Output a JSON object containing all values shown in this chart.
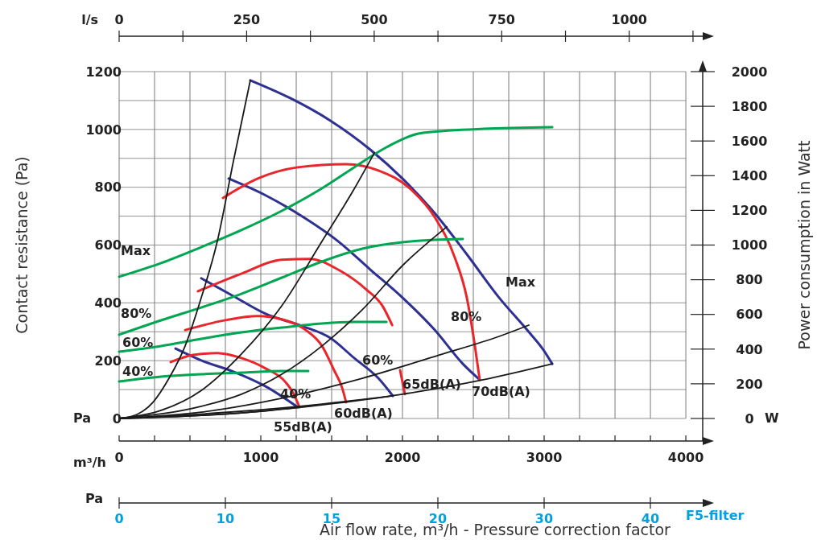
{
  "chart_data": {
    "type": "line",
    "xlabel": "Air flow rate, m³/h - Pressure correction factor",
    "ylabel": "Contact resistance (Pa)",
    "y2label": "Power consumption in Watt",
    "x2label": "l/s",
    "xlim": [
      0,
      4119
    ],
    "xticks": [
      0,
      {
        "value": 250,
        "label": null
      },
      {
        "value": 500,
        "label": null
      },
      {
        "value": 750,
        "label": null
      },
      1000,
      {
        "value": 1250,
        "label": null
      },
      {
        "value": 1500,
        "label": null
      },
      {
        "value": 1750,
        "label": null
      },
      2000,
      {
        "value": 2250,
        "label": null
      },
      {
        "value": 2500,
        "label": null
      },
      {
        "value": 2750,
        "label": null
      },
      3000,
      {
        "value": 3250,
        "label": null
      },
      {
        "value": 3500,
        "label": null
      },
      {
        "value": 3750,
        "label": null
      },
      4000
    ],
    "x2lim": [
      0,
      1144
    ],
    "x2ticks": [
      0,
      250,
      500,
      750,
      1000
    ],
    "ylim": [
      -78,
      1200
    ],
    "yticks": [
      0,
      {
        "value": 100,
        "label": null
      },
      200,
      {
        "value": 300,
        "label": null
      },
      400,
      {
        "value": 500,
        "label": null
      },
      600,
      {
        "value": 700,
        "label": null
      },
      800,
      {
        "value": 900,
        "label": null
      },
      1000,
      {
        "value": 1100,
        "label": null
      },
      1200
    ],
    "y2lim": [
      -130,
      2000
    ],
    "y2ticks": [
      0,
      200,
      400,
      600,
      800,
      1000,
      1200,
      1400,
      1600,
      1800,
      2000
    ],
    "grid": true,
    "line_style": "solid",
    "series": [
      {
        "color": "#2e3192",
        "x": [
          926,
          1205,
          1489,
          1773,
          2000,
          2228,
          2454,
          2682,
          2880,
          2995,
          3057
        ],
        "values": [
          1170,
          1109,
          1031,
          930,
          830,
          710,
          568,
          418,
          306,
          237,
          189
        ]
      },
      {
        "color": "#2e3192",
        "x": [
          773,
          1034,
          1318,
          1546,
          1773,
          2000,
          2228,
          2426,
          2545
        ],
        "values": [
          830,
          772,
          691,
          613,
          515,
          418,
          306,
          189,
          134
        ]
      },
      {
        "color": "#2e3192",
        "x": [
          580,
          807,
          1034,
          1290,
          1489,
          1659,
          1830,
          1932
        ],
        "values": [
          485,
          423,
          362,
          320,
          279,
          209,
          139,
          78
        ]
      },
      {
        "color": "#2e3192",
        "x": [
          398,
          580,
          807,
          1034,
          1261
        ],
        "values": [
          242,
          201,
          162,
          111,
          39
        ]
      },
      {
        "color": "#e8262b",
        "x": [
          733,
          978,
          1261,
          1602,
          1830,
          2057,
          2228,
          2369,
          2454,
          2511,
          2545
        ],
        "values": [
          763,
          830,
          869,
          880,
          858,
          794,
          696,
          557,
          418,
          251,
          134
        ]
      },
      {
        "color": "#e8262b",
        "x": [
          556,
          863,
          1148,
          1347,
          1546,
          1745,
          1858,
          1927
        ],
        "values": [
          440,
          501,
          549,
          552,
          515,
          446,
          390,
          323
        ]
      },
      {
        "color": "#e8262b",
        "x": [
          1983,
          2017
        ],
        "values": [
          167,
          84
        ]
      },
      {
        "color": "#e8262b",
        "x": [
          466,
          750,
          978,
          1148,
          1318,
          1432,
          1517,
          1574,
          1602
        ],
        "values": [
          306,
          340,
          354,
          343,
          306,
          251,
          167,
          106,
          56
        ]
      },
      {
        "color": "#e8262b",
        "x": [
          364,
          523,
          693,
          863,
          1034,
          1176,
          1233,
          1273
        ],
        "values": [
          195,
          220,
          226,
          209,
          173,
          125,
          84,
          39
        ]
      },
      {
        "color": "#00a651",
        "axis": "y2",
        "x": [
          0,
          296,
          580,
          863,
          1148,
          1432,
          1659,
          1887,
          2113,
          2341,
          2569,
          3057
        ],
        "values": [
          817,
          896,
          988,
          1086,
          1197,
          1327,
          1448,
          1564,
          1643,
          1661,
          1670,
          1680
        ]
      },
      {
        "color": "#00a651",
        "axis": "y2",
        "x": [
          0,
          296,
          580,
          863,
          1148,
          1432,
          1716,
          2000,
          2228,
          2426
        ],
        "values": [
          483,
          566,
          640,
          719,
          812,
          905,
          979,
          1016,
          1030,
          1035
        ]
      },
      {
        "color": "#00a651",
        "axis": "y2",
        "x": [
          0,
          296,
          580,
          863,
          1148,
          1432,
          1659,
          1887
        ],
        "values": [
          385,
          418,
          459,
          496,
          524,
          548,
          557,
          557
        ]
      },
      {
        "color": "#00a651",
        "axis": "y2",
        "x": [
          0,
          296,
          580,
          863,
          1148,
          1335
        ],
        "values": [
          213,
          241,
          255,
          264,
          274,
          274
        ]
      },
      {
        "color": "#1a1a1a",
        "x": [
          0,
          126,
          239,
          352,
          466,
          580,
          693,
          807,
          926
        ],
        "values": [
          0,
          14,
          56,
          139,
          251,
          418,
          613,
          891,
          1170
        ]
      },
      {
        "color": "#1a1a1a",
        "x": [
          0,
          296,
          580,
          863,
          1148,
          1432,
          1659,
          1802
        ],
        "values": [
          0,
          28,
          97,
          223,
          390,
          613,
          794,
          919
        ]
      },
      {
        "color": "#1a1a1a",
        "x": [
          0,
          580,
          863,
          1148,
          1432,
          1716,
          2000,
          2313
        ],
        "values": [
          0,
          42,
          84,
          153,
          251,
          376,
          529,
          663
        ]
      },
      {
        "color": "#1a1a1a",
        "x": [
          0,
          580,
          1148,
          1716,
          2284,
          2682,
          2892
        ],
        "values": [
          0,
          22,
          70,
          139,
          223,
          284,
          323
        ]
      },
      {
        "color": "#1a1a1a",
        "x": [
          0,
          863,
          1432,
          2000,
          2569,
          3057
        ],
        "values": [
          0,
          19,
          47,
          84,
          134,
          189
        ]
      },
      {
        "color": "#1a1a1a",
        "x": [
          0,
          863,
          1432,
          1932
        ],
        "values": [
          0,
          25,
          50,
          78
        ]
      },
      {
        "color": "#1a1a1a",
        "x": [
          0,
          580,
          863,
          1261
        ],
        "values": [
          0,
          11,
          19,
          39
        ]
      }
    ],
    "annotations": [
      "Max",
      "80%",
      "60%",
      "40%",
      "Max",
      "80%",
      "60%",
      "40%",
      "55dB(A)",
      "60dB(A)",
      "65dB(A)",
      "70dB(A)",
      "m³/h",
      "Pa",
      "W",
      "Pa",
      "0",
      "10",
      "15",
      "20",
      "30",
      "40",
      "F5-filter"
    ]
  }
}
